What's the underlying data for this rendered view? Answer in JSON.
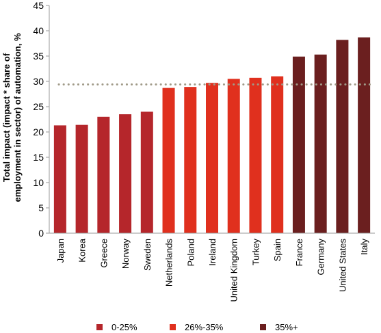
{
  "chart_data": {
    "type": "bar",
    "title": "",
    "xlabel": "",
    "ylabel_lines": [
      "Total impact (impact * share of",
      "employment in sector) of automation, %"
    ],
    "ylim": [
      0,
      45
    ],
    "yticks": [
      0,
      5,
      10,
      15,
      20,
      25,
      30,
      35,
      40,
      45
    ],
    "grid": false,
    "legend_position": "bottom",
    "reference_line": {
      "value": 29.4,
      "style": "dotted",
      "color": "#a09a88"
    },
    "categories": [
      "Japan",
      "Korea",
      "Greece",
      "Norway",
      "Sweden",
      "Netherlands",
      "Poland",
      "Ireland",
      "United Kingdom",
      "Turkey",
      "Spain",
      "France",
      "Germany",
      "United States",
      "Italy"
    ],
    "values": [
      21.3,
      21.4,
      23.0,
      23.5,
      24.0,
      28.7,
      28.9,
      29.7,
      30.5,
      30.7,
      31.0,
      34.9,
      35.3,
      38.2,
      38.7
    ],
    "groups": [
      0,
      0,
      0,
      0,
      0,
      1,
      1,
      1,
      1,
      1,
      1,
      2,
      2,
      2,
      2
    ],
    "legend": [
      {
        "label": "0-25%",
        "color": "#b5262b"
      },
      {
        "label": "26%-35%",
        "color": "#e0301e"
      },
      {
        "label": "35%+",
        "color": "#6b1f1f"
      }
    ]
  }
}
